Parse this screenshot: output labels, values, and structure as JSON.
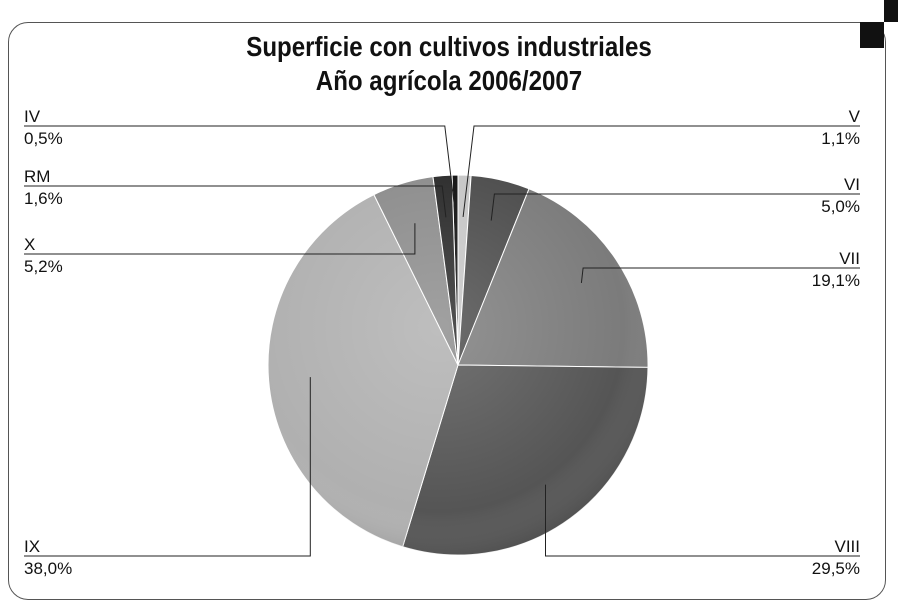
{
  "chart_data": {
    "type": "pie",
    "title": "Superficie con cultivos industriales",
    "subtitle": "Año agrícola 2006/2007",
    "slices": [
      {
        "label": "IV",
        "value": 0.5,
        "value_label": "0,5%",
        "color": "#101010"
      },
      {
        "label": "V",
        "value": 1.1,
        "value_label": "1,1%",
        "color": "#c6c6c6"
      },
      {
        "label": "VI",
        "value": 5.0,
        "value_label": "5,0%",
        "color": "#4c4c4c"
      },
      {
        "label": "VII",
        "value": 19.1,
        "value_label": "19,1%",
        "color": "#7b7b7b"
      },
      {
        "label": "VIII",
        "value": 29.5,
        "value_label": "29,5%",
        "color": "#555555"
      },
      {
        "label": "IX",
        "value": 38.0,
        "value_label": "38,0%",
        "color": "#b0b0b0"
      },
      {
        "label": "X",
        "value": 5.2,
        "value_label": "5,2%",
        "color": "#8c8c8c"
      },
      {
        "label": "RM",
        "value": 1.6,
        "value_label": "1,6%",
        "color": "#2a2a2a"
      }
    ]
  },
  "decoration": {
    "corner_icon": "checker-corner-icon"
  }
}
